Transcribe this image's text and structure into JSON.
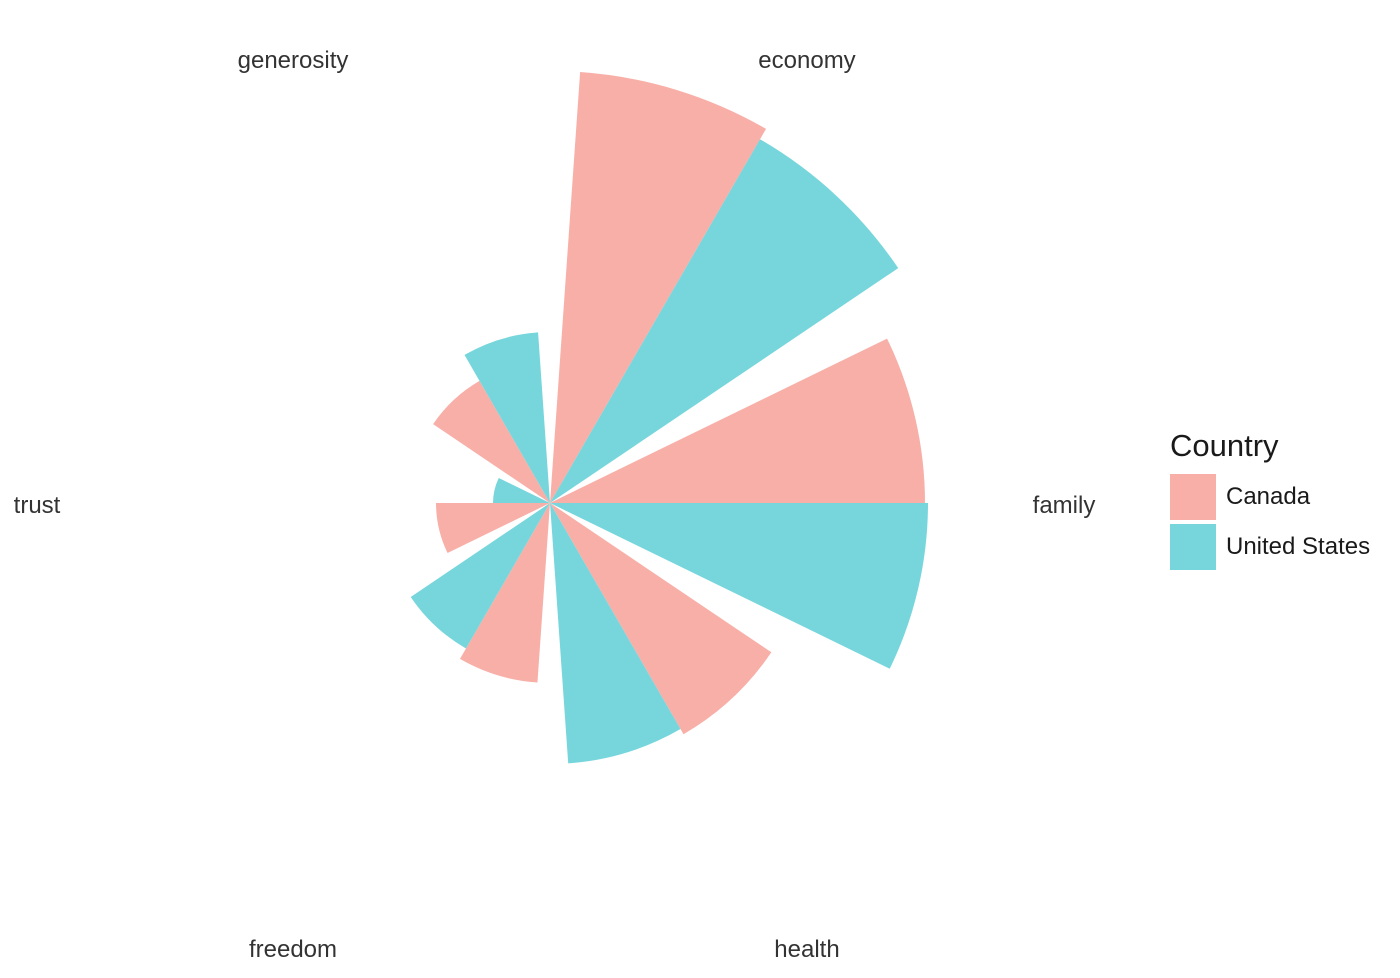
{
  "chart_data": {
    "type": "polar-bar",
    "categories": [
      "economy",
      "family",
      "health",
      "freedom",
      "trust",
      "generosity"
    ],
    "series": [
      {
        "name": "Canada",
        "color": "#F8AFA8",
        "values": [
          1.44,
          1.25,
          0.89,
          0.6,
          0.38,
          0.47
        ]
      },
      {
        "name": "United States",
        "color": "#76D6DC",
        "values": [
          1.4,
          1.26,
          0.87,
          0.56,
          0.19,
          0.57
        ]
      }
    ],
    "legend": {
      "title": "Country",
      "position": "right"
    },
    "grid": false
  }
}
